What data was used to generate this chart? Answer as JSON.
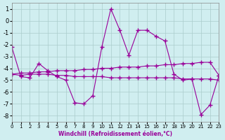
{
  "xlabel": "Windchill (Refroidissement éolien,°C)",
  "x": [
    0,
    1,
    2,
    3,
    4,
    5,
    6,
    7,
    8,
    9,
    10,
    11,
    12,
    13,
    14,
    15,
    16,
    17,
    18,
    19,
    20,
    21,
    22,
    23
  ],
  "line1": [
    -2.2,
    -4.7,
    -4.8,
    -3.6,
    -4.2,
    -4.7,
    -5.0,
    -6.9,
    -7.0,
    -6.3,
    -2.2,
    1.0,
    -0.8,
    -2.9,
    -0.8,
    -0.8,
    -1.3,
    -1.7,
    -4.5,
    -5.0,
    -4.9,
    -7.9,
    -7.1,
    -4.6
  ],
  "line2": [
    -4.5,
    -4.6,
    -4.5,
    -4.5,
    -4.5,
    -4.6,
    -4.6,
    -4.7,
    -4.7,
    -4.7,
    -4.7,
    -4.8,
    -4.8,
    -4.8,
    -4.8,
    -4.8,
    -4.8,
    -4.8,
    -4.8,
    -4.9,
    -4.9,
    -4.9,
    -4.9,
    -5.0
  ],
  "line3": [
    -4.5,
    -4.4,
    -4.4,
    -4.3,
    -4.3,
    -4.2,
    -4.2,
    -4.2,
    -4.1,
    -4.1,
    -4.0,
    -4.0,
    -3.9,
    -3.9,
    -3.9,
    -3.8,
    -3.8,
    -3.7,
    -3.7,
    -3.6,
    -3.6,
    -3.5,
    -3.5,
    -4.6
  ],
  "line_color": "#990099",
  "bg_color": "#d0eef0",
  "grid_color": "#aacccc",
  "ylim": [
    -8.5,
    1.5
  ],
  "xlim": [
    0,
    23
  ],
  "yticks": [
    1,
    0,
    -1,
    -2,
    -3,
    -4,
    -5,
    -6,
    -7,
    -8
  ],
  "xticks": [
    0,
    1,
    2,
    3,
    4,
    5,
    6,
    7,
    8,
    9,
    10,
    11,
    12,
    13,
    14,
    15,
    16,
    17,
    18,
    19,
    20,
    21,
    22,
    23
  ]
}
